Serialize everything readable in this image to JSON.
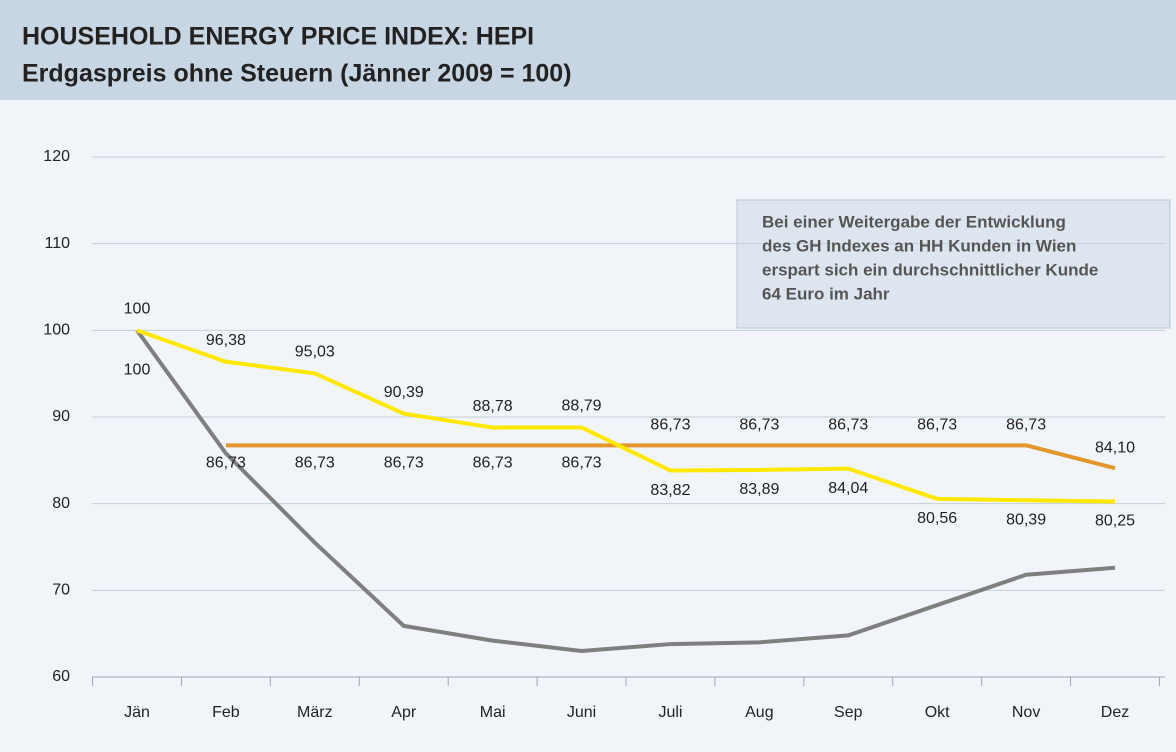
{
  "chart_data": {
    "type": "line",
    "title": "HOUSEHOLD ENERGY PRICE INDEX: HEPI",
    "subtitle": "Erdgaspreis ohne Steuern (Jänner 2009 = 100)",
    "annotation": [
      "Bei einer Weitergabe der Entwicklung",
      "des GH Indexes an HH Kunden in Wien",
      "erspart sich ein durchschnittlicher Kunde",
      "64 Euro im Jahr"
    ],
    "categories": [
      "Jän",
      "Feb",
      "März",
      "Apr",
      "Mai",
      "Juni",
      "Juli",
      "Aug",
      "Sep",
      "Okt",
      "Nov",
      "Dez"
    ],
    "series": [
      {
        "color": "#7f7f7f",
        "values": [
          100,
          85.8,
          75.5,
          65.9,
          64.2,
          63.0,
          63.8,
          64.0,
          64.8,
          68.3,
          71.8,
          72.6
        ],
        "value_labels": [
          "100",
          null,
          null,
          null,
          null,
          null,
          null,
          null,
          null,
          null,
          null,
          null
        ]
      },
      {
        "color": "#e2962c",
        "values": [
          null,
          86.73,
          86.73,
          86.73,
          86.73,
          86.73,
          86.73,
          86.73,
          86.73,
          86.73,
          86.73,
          84.1
        ],
        "value_labels": [
          null,
          "86,73",
          "86,73",
          "86,73",
          "86,73",
          "86,73",
          "86,73",
          "86,73",
          "86,73",
          "86,73",
          "86,73",
          "84,10"
        ]
      },
      {
        "color": "#ffe800",
        "values": [
          100,
          96.38,
          95.03,
          90.39,
          88.78,
          88.79,
          83.82,
          83.89,
          84.04,
          80.56,
          80.39,
          80.25
        ],
        "value_labels": [
          "100",
          "96,38",
          "95,03",
          "90,39",
          "88,78",
          "88,79",
          "83,82",
          "83,89",
          "84,04",
          "80,56",
          "80,39",
          "80,25"
        ]
      }
    ],
    "ylim": [
      60,
      120
    ],
    "yticks": [
      60,
      70,
      80,
      90,
      100,
      110,
      120
    ],
    "grid": true
  }
}
